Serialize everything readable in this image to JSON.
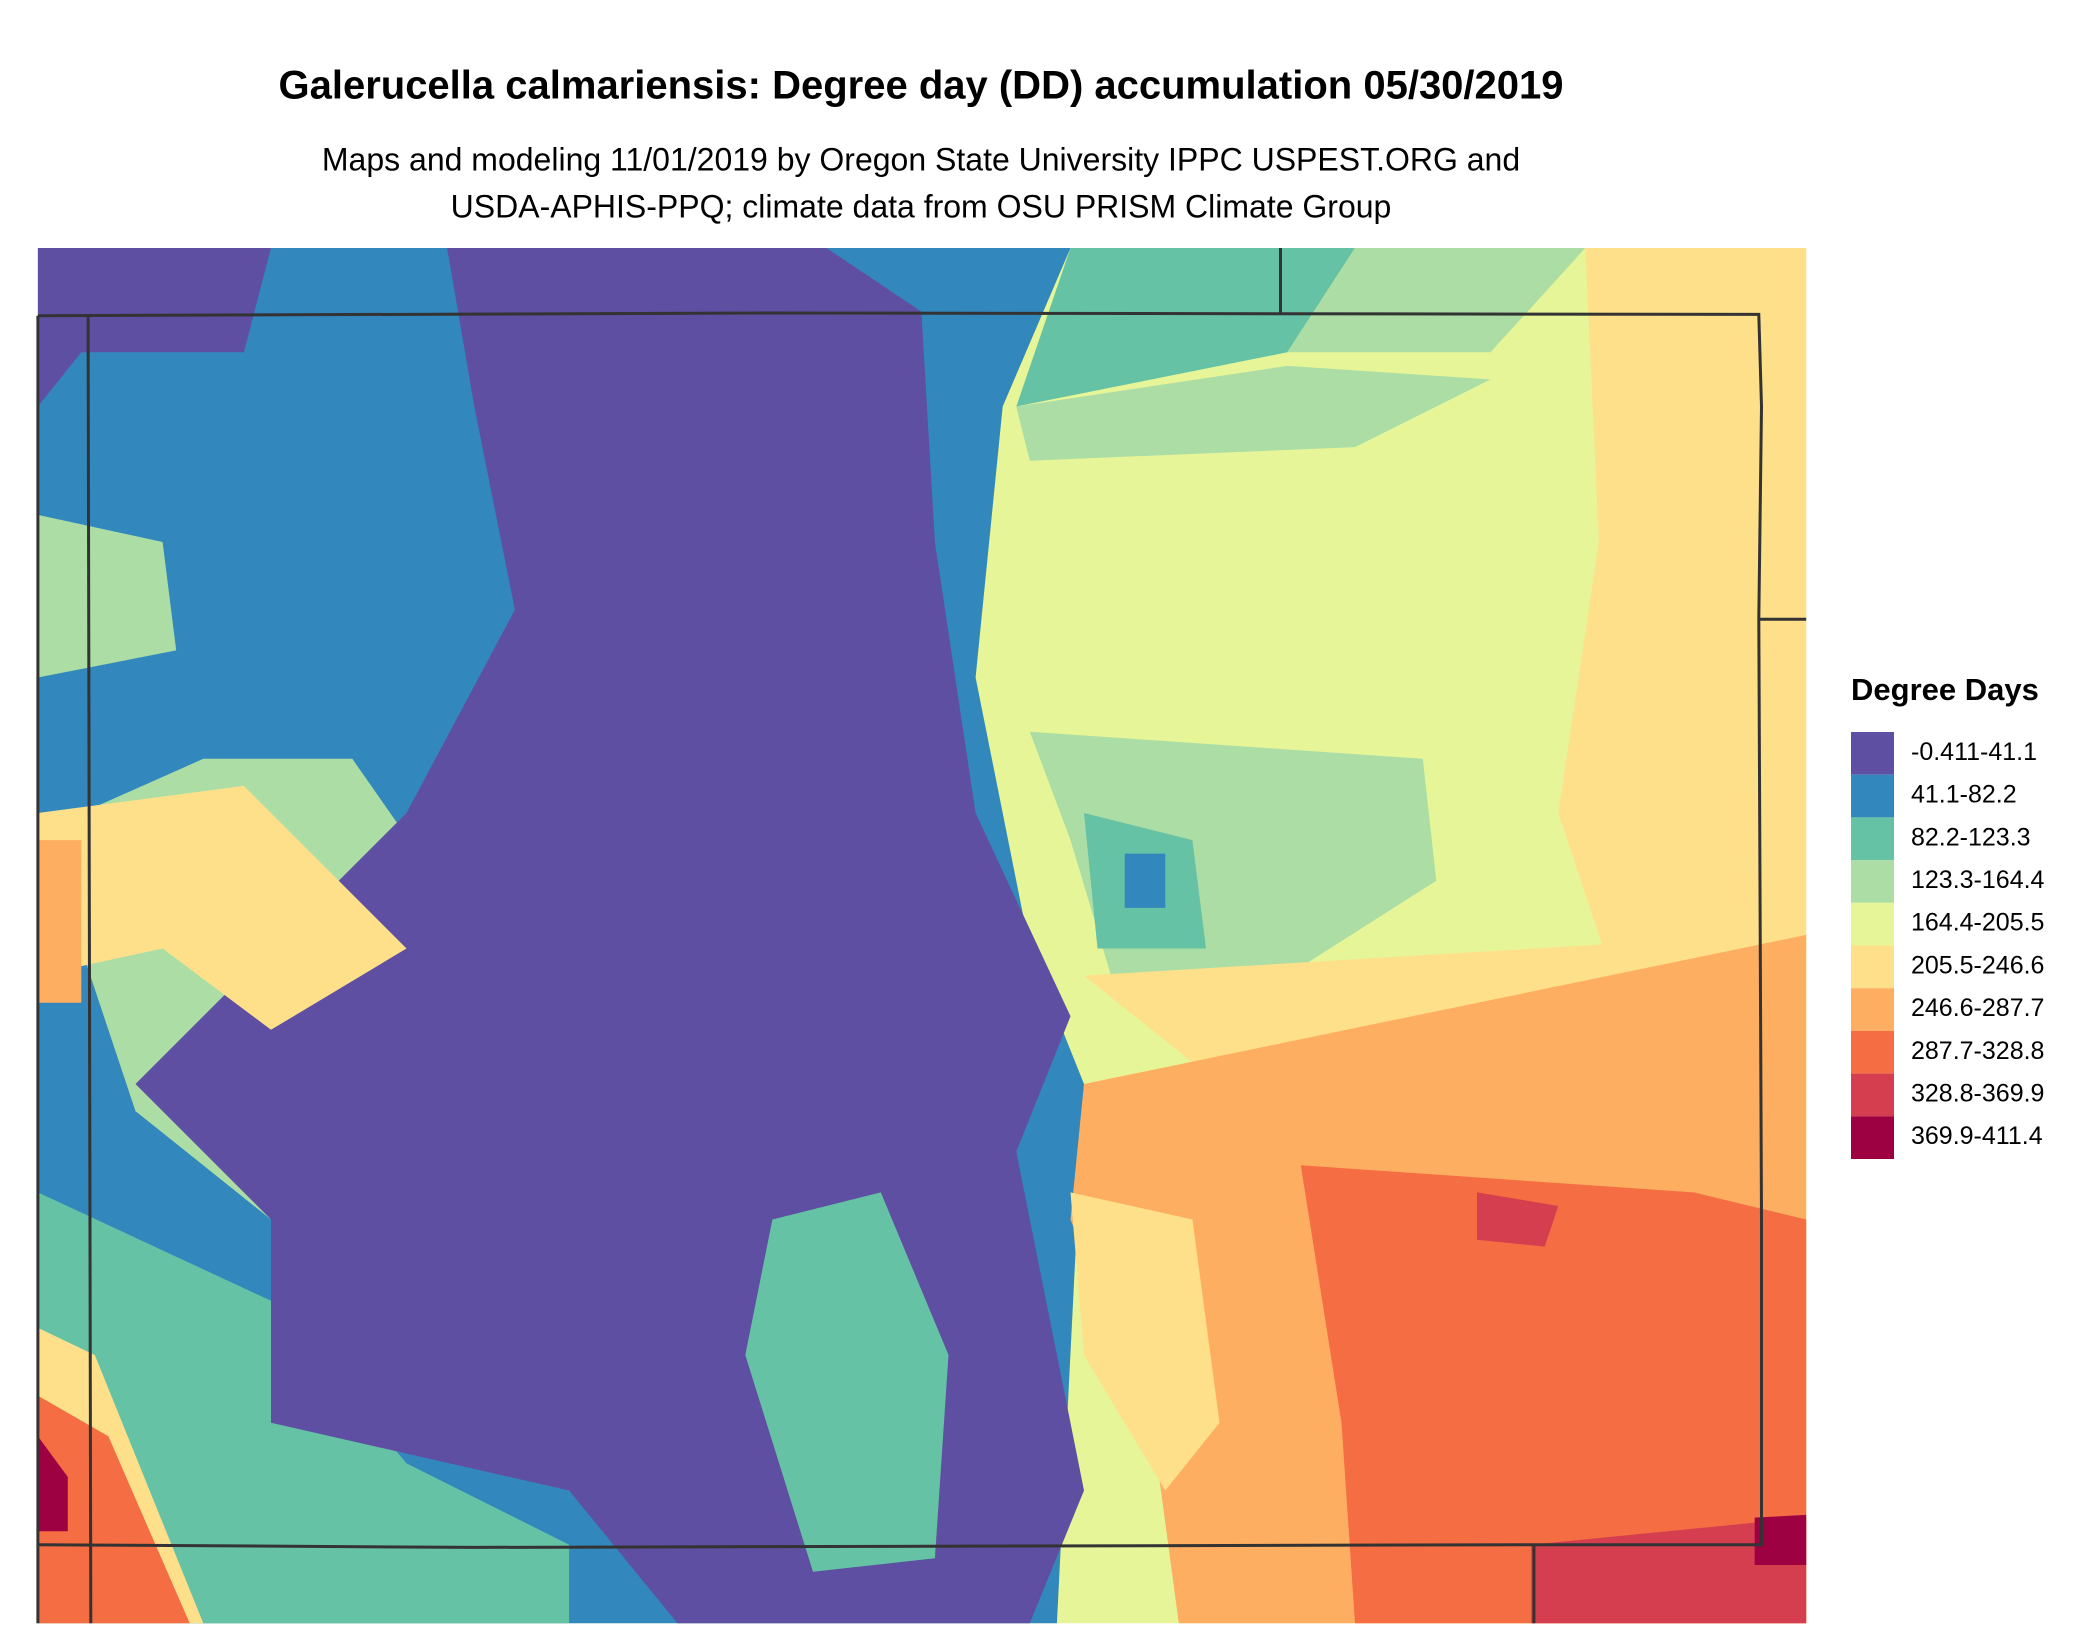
{
  "title": "Galerucella calmariensis: Degree day (DD) accumulation 05/30/2019",
  "subtitle": [
    "Maps and modeling 11/01/2019 by Oregon State University IPPC USPEST.ORG and",
    "USDA-APHIS-PPQ; climate data from OSU PRISM Climate Group"
  ],
  "legend": {
    "title": "Degree Days",
    "items": [
      {
        "label": "-0.411-41.1",
        "color": "#5e4fa2"
      },
      {
        "label": "41.1-82.2",
        "color": "#3288bd"
      },
      {
        "label": "82.2-123.3",
        "color": "#66c2a5"
      },
      {
        "label": "123.3-164.4",
        "color": "#abdda4"
      },
      {
        "label": "164.4-205.5",
        "color": "#e6f598"
      },
      {
        "label": "205.5-246.6",
        "color": "#fee08b"
      },
      {
        "label": "246.6-287.7",
        "color": "#fdae61"
      },
      {
        "label": "287.7-328.8",
        "color": "#f46d43"
      },
      {
        "label": "328.8-369.9",
        "color": "#d53e4f"
      },
      {
        "label": "369.9-411.4",
        "color": "#9e0142"
      }
    ]
  }
}
